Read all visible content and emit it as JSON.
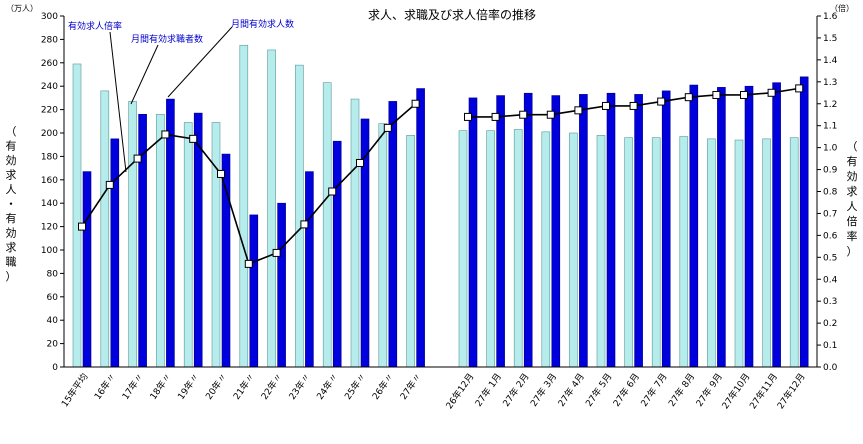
{
  "chart_data": {
    "type": "bar",
    "title": "求人、求職及び求人倍率の推移",
    "left_unit": "（万人）",
    "right_unit": "（倍）",
    "left_ylabel": "（有効求人・有効求職）",
    "right_ylabel": "（有効求人倍率）",
    "left_ylim": [
      0,
      300
    ],
    "left_ticks": [
      "0",
      "20",
      "40",
      "60",
      "80",
      "100",
      "120",
      "140",
      "160",
      "180",
      "200",
      "220",
      "240",
      "260",
      "280",
      "300"
    ],
    "right_ylim": [
      0.0,
      1.6
    ],
    "right_ticks": [
      "0.0",
      "0.1",
      "0.2",
      "0.3",
      "0.4",
      "0.5",
      "0.6",
      "0.7",
      "0.8",
      "0.9",
      "1.0",
      "1.1",
      "1.2",
      "1.3",
      "1.4",
      "1.5",
      "1.6"
    ],
    "categories": [
      "15年平均",
      "16年〃",
      "17年〃",
      "18年〃",
      "19年〃",
      "20年〃",
      "21年〃",
      "22年〃",
      "23年〃",
      "24年〃",
      "25年〃",
      "26年〃",
      "27年〃",
      "26年12月",
      "27年 1月",
      "27年 2月",
      "27年 3月",
      "27年 4月",
      "27年 5月",
      "27年 6月",
      "27年 7月",
      "27年 8月",
      "27年 9月",
      "27年10月",
      "27年11月",
      "27年12月"
    ],
    "series": [
      {
        "name": "月間有効求職者数",
        "color": "#b6ecec",
        "values": [
          259,
          236,
          227,
          216,
          209,
          209,
          275,
          271,
          258,
          243,
          229,
          208,
          198,
          202,
          202,
          203,
          201,
          200,
          198,
          196,
          196,
          197,
          195,
          194,
          195,
          196
        ]
      },
      {
        "name": "月間有効求人数",
        "color": "#0000dd",
        "values": [
          167,
          195,
          216,
          229,
          217,
          182,
          130,
          140,
          167,
          193,
          212,
          227,
          238,
          230,
          232,
          234,
          232,
          233,
          234,
          233,
          236,
          241,
          239,
          240,
          243,
          248
        ]
      },
      {
        "name": "有効求人倍率",
        "values": [
          0.64,
          0.83,
          0.95,
          1.06,
          1.04,
          0.88,
          0.47,
          0.52,
          0.65,
          0.8,
          0.93,
          1.09,
          1.2,
          1.14,
          1.14,
          1.15,
          1.15,
          1.17,
          1.19,
          1.19,
          1.21,
          1.23,
          1.24,
          1.24,
          1.25,
          1.27
        ]
      }
    ],
    "annotations": {
      "ratio_label": "有効求人倍率",
      "seekers_label": "月間有効求職者数",
      "openings_label": "月間有効求人数"
    },
    "grid": false,
    "legend": "none"
  }
}
